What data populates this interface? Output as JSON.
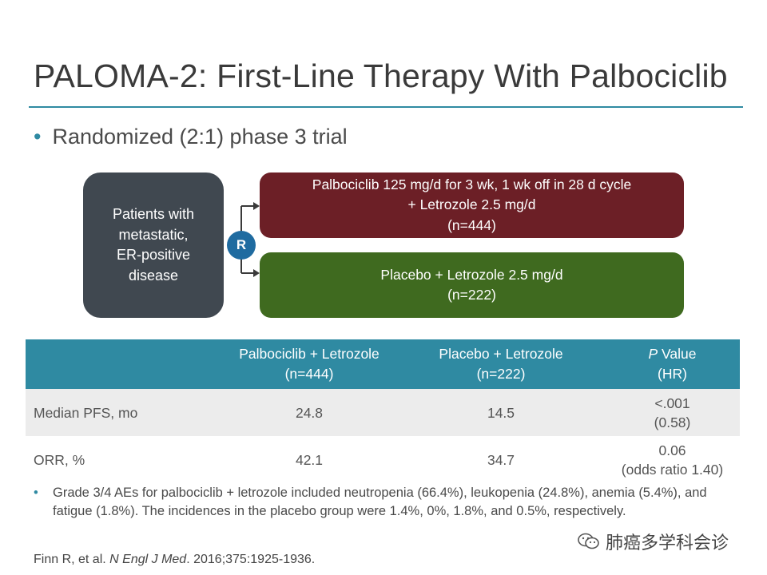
{
  "slide": {
    "title": "PALOMA-2: First-Line Therapy With Palbociclib",
    "bullet": "Randomized (2:1) phase 3 trial"
  },
  "diagram": {
    "patients_lines": [
      "Patients with",
      "metastatic,",
      "ER-positive",
      "disease"
    ],
    "randomize_label": "R",
    "arm1_lines": [
      "Palbociclib 125 mg/d for 3 wk, 1 wk off in 28 d cycle",
      "+ Letrozole 2.5 mg/d",
      "(n=444)"
    ],
    "arm2_lines": [
      "Placebo + Letrozole 2.5 mg/d",
      "(n=222)"
    ],
    "colors": {
      "patients": "#404850",
      "arm1": "#6c1f26",
      "arm2": "#3f6a1f",
      "randomize": "#1f6ba0",
      "accent": "#2f8aa2"
    }
  },
  "table": {
    "headers": [
      {
        "line1": "",
        "line2": ""
      },
      {
        "line1": "Palbociclib + Letrozole",
        "line2": "(n=444)"
      },
      {
        "line1": "Placebo + Letrozole",
        "line2": "(n=222)"
      },
      {
        "line1_italic": "P",
        "line1_rest": " Value",
        "line2": "(HR)"
      }
    ],
    "rows": [
      {
        "label": "Median PFS, mo",
        "palbo": "24.8",
        "placebo": "14.5",
        "p_line1": "<.001",
        "p_line2": "(0.58)"
      },
      {
        "label": "ORR, %",
        "palbo": "42.1",
        "placebo": "34.7",
        "p_line1": "0.06",
        "p_line2": "(odds ratio 1.40)"
      }
    ]
  },
  "notes": {
    "ae_text": "Grade 3/4 AEs for palbociclib + letrozole included neutropenia (66.4%), leukopenia (24.8%), anemia (5.4%), and fatigue (1.8%). The incidences in the placebo group were 1.4%, 0%, 1.8%, and 0.5%, respectively."
  },
  "citation": {
    "authors": "Finn R, et al. ",
    "journal": "N Engl J Med",
    "details": ". 2016;375:1925-1936."
  },
  "watermark": {
    "text": "肺癌多学科会诊",
    "icon": "wechat-icon"
  }
}
